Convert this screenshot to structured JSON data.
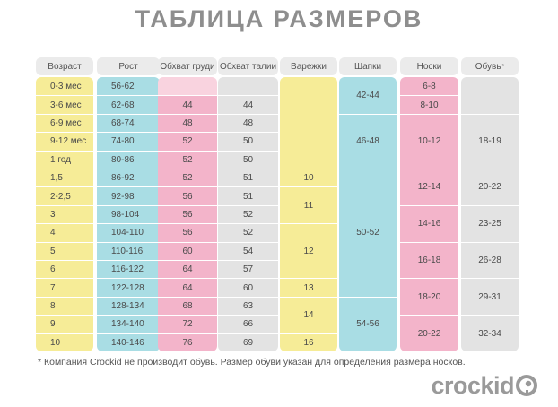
{
  "title": "ТАБЛИЦА РАЗМЕРОВ",
  "headers": [
    "Возраст",
    "Рост",
    "Обхват груди",
    "Обхват талии",
    "Варежки",
    "Шапки",
    "Носки",
    "Обувь"
  ],
  "footnote": "* Компания Crockid не производит обувь. Размер обуви указан для определения размера носков.",
  "shoe_mark": "*",
  "logo_text": "crockid",
  "colors": {
    "yellow": "#f6ec97",
    "blue": "#a9dde4",
    "pink": "#f3b4ca",
    "pink_light": "#f9d3df",
    "gray": "#e3e3e3",
    "header": "#ebebeb"
  },
  "rows": [
    {
      "age": "0-3 мес",
      "height": "56-62",
      "chest": "",
      "waist": ""
    },
    {
      "age": "3-6 мес",
      "height": "62-68",
      "chest": "44",
      "waist": "44"
    },
    {
      "age": "6-9 мес",
      "height": "68-74",
      "chest": "48",
      "waist": "48"
    },
    {
      "age": "9-12 мес",
      "height": "74-80",
      "chest": "52",
      "waist": "50"
    },
    {
      "age": "1 год",
      "height": "80-86",
      "chest": "52",
      "waist": "50"
    },
    {
      "age": "1,5",
      "height": "86-92",
      "chest": "52",
      "waist": "51"
    },
    {
      "age": "2-2,5",
      "height": "92-98",
      "chest": "56",
      "waist": "51"
    },
    {
      "age": "3",
      "height": "98-104",
      "chest": "56",
      "waist": "52"
    },
    {
      "age": "4",
      "height": "104-110",
      "chest": "56",
      "waist": "52"
    },
    {
      "age": "5",
      "height": "110-116",
      "chest": "60",
      "waist": "54"
    },
    {
      "age": "6",
      "height": "116-122",
      "chest": "64",
      "waist": "57"
    },
    {
      "age": "7",
      "height": "122-128",
      "chest": "64",
      "waist": "60"
    },
    {
      "age": "8",
      "height": "128-134",
      "chest": "68",
      "waist": "63"
    },
    {
      "age": "9",
      "height": "134-140",
      "chest": "72",
      "waist": "66"
    },
    {
      "age": "10",
      "height": "140-146",
      "chest": "76",
      "waist": "69"
    }
  ],
  "mittens": [
    {
      "label": "",
      "first_row": 0,
      "row_count": 5
    },
    {
      "label": "10",
      "first_row": 5,
      "row_count": 1
    },
    {
      "label": "11",
      "first_row": 6,
      "row_count": 2
    },
    {
      "label": "12",
      "first_row": 8,
      "row_count": 3
    },
    {
      "label": "13",
      "first_row": 11,
      "row_count": 1
    },
    {
      "label": "14",
      "first_row": 12,
      "row_count": 2
    },
    {
      "label": "16",
      "first_row": 14,
      "row_count": 1
    }
  ],
  "hats": [
    {
      "label": "42-44",
      "first_row": 0,
      "row_count": 2
    },
    {
      "label": "46-48",
      "first_row": 2,
      "row_count": 3
    },
    {
      "label": "50-52",
      "first_row": 5,
      "row_count": 7
    },
    {
      "label": "54-56",
      "first_row": 12,
      "row_count": 3
    }
  ],
  "socks": [
    {
      "label": "6-8",
      "first_row": 0,
      "row_count": 1
    },
    {
      "label": "8-10",
      "first_row": 1,
      "row_count": 1
    },
    {
      "label": "10-12",
      "first_row": 2,
      "row_count": 3
    },
    {
      "label": "12-14",
      "first_row": 5,
      "row_count": 2
    },
    {
      "label": "14-16",
      "first_row": 7,
      "row_count": 2
    },
    {
      "label": "16-18",
      "first_row": 9,
      "row_count": 2
    },
    {
      "label": "18-20",
      "first_row": 11,
      "row_count": 2
    },
    {
      "label": "20-22",
      "first_row": 13,
      "row_count": 2
    }
  ],
  "shoes": [
    {
      "label": "",
      "first_row": 0,
      "row_count": 2
    },
    {
      "label": "18-19",
      "first_row": 2,
      "row_count": 3
    },
    {
      "label": "20-22",
      "first_row": 5,
      "row_count": 2
    },
    {
      "label": "23-25",
      "first_row": 7,
      "row_count": 2
    },
    {
      "label": "26-28",
      "first_row": 9,
      "row_count": 2
    },
    {
      "label": "29-31",
      "first_row": 11,
      "row_count": 2
    },
    {
      "label": "32-34",
      "first_row": 13,
      "row_count": 2
    }
  ]
}
